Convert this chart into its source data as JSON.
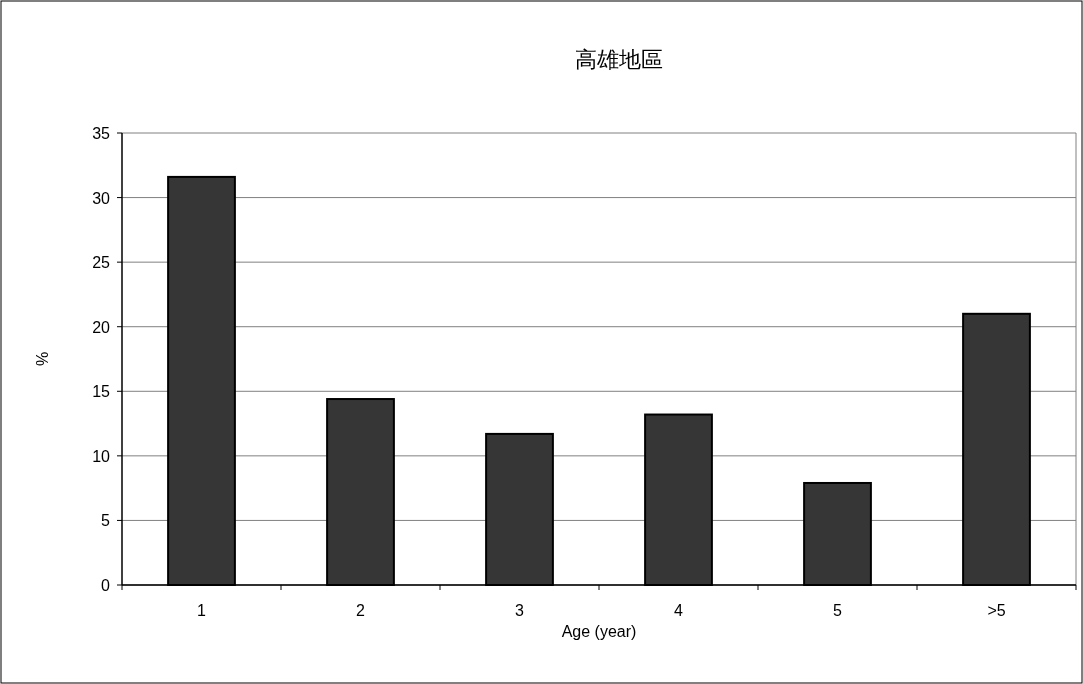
{
  "chart_data": {
    "type": "bar",
    "title": "高雄地區",
    "xlabel": "Age (year)",
    "ylabel": "%",
    "categories": [
      "1",
      "2",
      "3",
      "4",
      "5",
      ">5"
    ],
    "values": [
      31.6,
      14.4,
      11.7,
      13.2,
      7.9,
      21.0
    ],
    "color": "#363636",
    "ylim": [
      0,
      35
    ],
    "yticks": [
      0,
      5,
      10,
      15,
      20,
      25,
      30,
      35
    ],
    "grid": "y"
  }
}
